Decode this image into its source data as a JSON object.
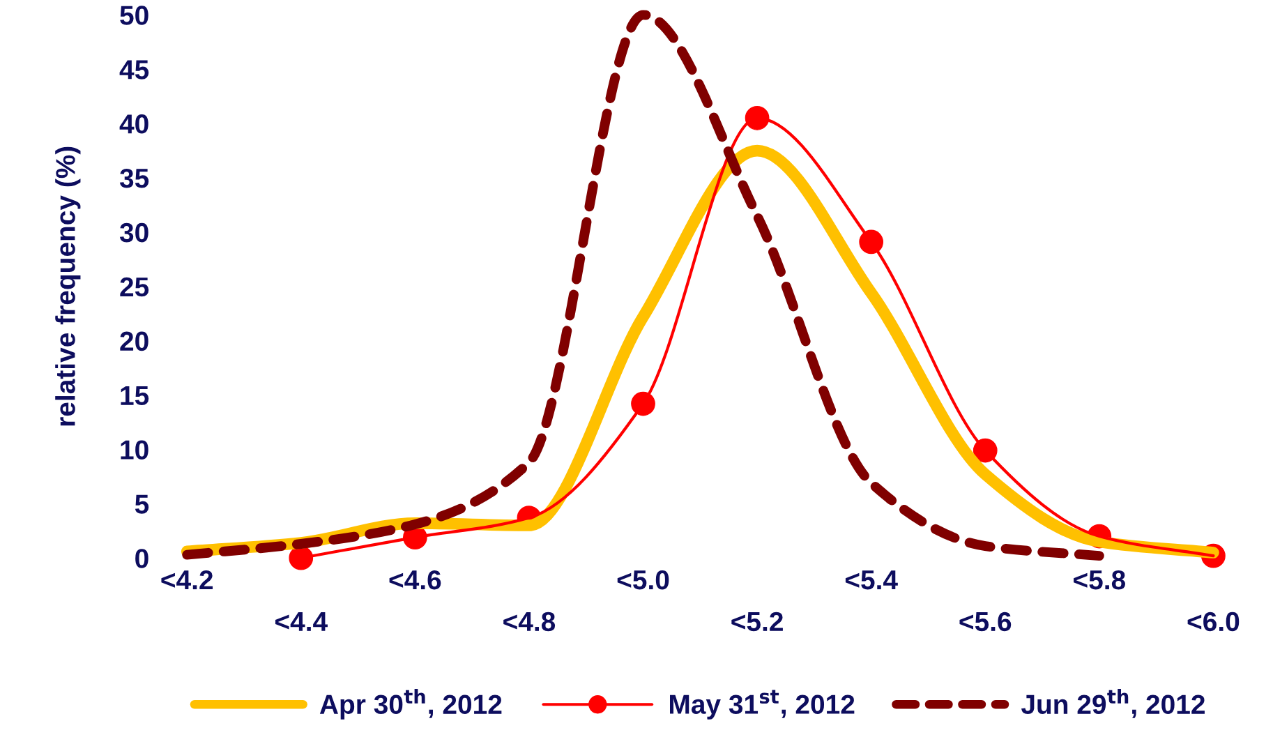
{
  "chart_data": {
    "type": "line",
    "ylabel": "relative frequency (%)",
    "categories": [
      "<4.2",
      "<4.4",
      "<4.6",
      "<4.8",
      "<5.0",
      "<5.2",
      "<5.4",
      "<5.6",
      "<5.8",
      "<6.0"
    ],
    "series": [
      {
        "name": "Apr 30$^{th}$, 2012",
        "color": "#ffc000",
        "marker": "none",
        "line_style": "solid",
        "values": [
          0.6,
          1.4,
          3.2,
          3.0,
          22.2,
          37.5,
          24.4,
          7.7,
          1.5,
          0.5
        ]
      },
      {
        "name": "May 31$^{st}$, 2012",
        "color": "#ff0000",
        "marker": "circle",
        "line_style": "solid",
        "values": [
          null,
          0.0,
          1.9,
          3.7,
          14.2,
          40.5,
          29.1,
          9.9,
          2.0,
          0.2
        ]
      },
      {
        "name": "Jun 29$^{th}$, 2012",
        "color": "#800000",
        "marker": "none",
        "line_style": "dashed",
        "values": [
          0.3,
          1.3,
          3.1,
          8.8,
          50.0,
          31.5,
          6.9,
          1.1,
          0.2,
          null
        ]
      }
    ],
    "ylim": [
      0,
      50
    ],
    "yticks": [
      0,
      5,
      10,
      15,
      20,
      25,
      30,
      35,
      40,
      45,
      50
    ],
    "grid": false,
    "legend": "bottom"
  }
}
